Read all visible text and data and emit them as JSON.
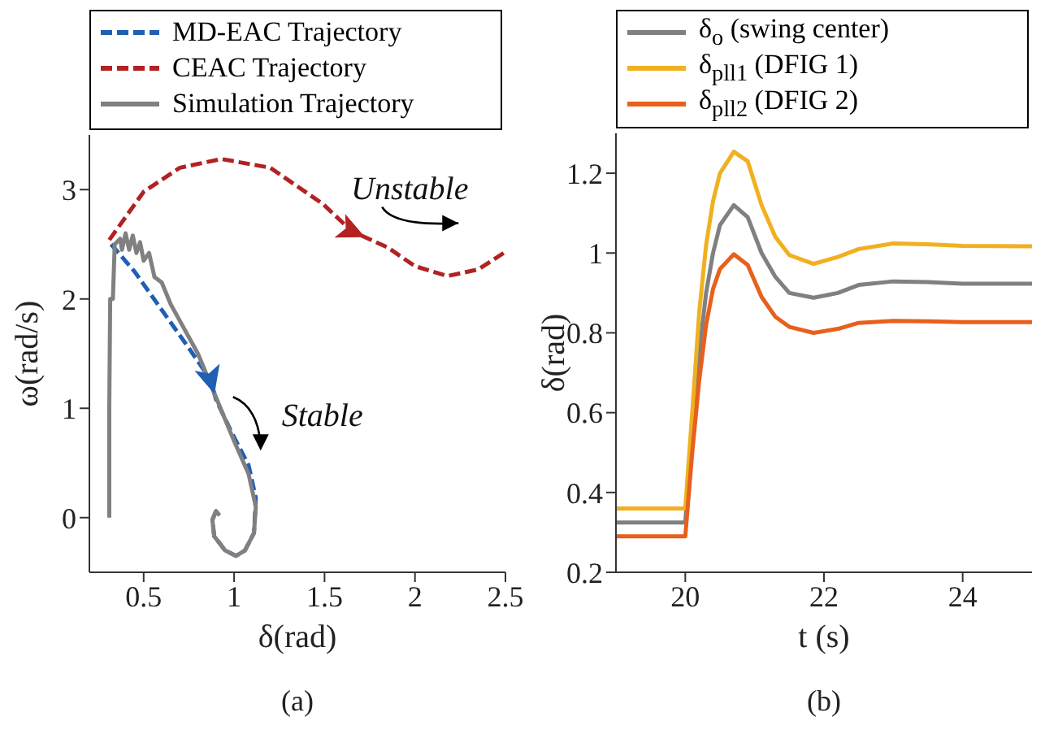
{
  "chart_data": [
    {
      "type": "line",
      "xlabel": "δ(rad)",
      "ylabel": "ω(rad/s)",
      "xlim": [
        0.2,
        2.5
      ],
      "xticks": [
        0.5,
        1,
        1.5,
        2,
        2.5
      ],
      "ylim": [
        -0.5,
        3.5
      ],
      "yticks": [
        0,
        1,
        2,
        3
      ],
      "legend": "top",
      "marker": "none",
      "series": [
        {
          "name": "MD-EAC Trajectory",
          "color": "#1f5fb4",
          "line_style": "dashed",
          "x": [
            0.32,
            0.45,
            0.6,
            0.75,
            0.87,
            0.9,
            0.98,
            1.08,
            1.12,
            1.11,
            1.06,
            1.01,
            0.95,
            0.89,
            0.88,
            0.9
          ],
          "values": [
            2.5,
            2.25,
            1.9,
            1.55,
            1.26,
            1.08,
            0.8,
            0.48,
            0.18,
            -0.14,
            -0.3,
            -0.35,
            -0.3,
            -0.17,
            -0.02,
            0.06
          ]
        },
        {
          "name": "CEAC Trajectory",
          "color": "#b22222",
          "line_style": "dashed",
          "x": [
            0.31,
            0.5,
            0.7,
            0.93,
            1.2,
            1.49,
            1.65,
            1.85,
            2.0,
            2.18,
            2.35,
            2.49
          ],
          "values": [
            2.54,
            2.98,
            3.2,
            3.28,
            3.2,
            2.87,
            2.62,
            2.47,
            2.3,
            2.21,
            2.27,
            2.42
          ]
        },
        {
          "name": "Simulation Trajectory",
          "color": "#808080",
          "line_style": "solid",
          "x": [
            0.31,
            0.31,
            0.315,
            0.33,
            0.34,
            0.37,
            0.38,
            0.4,
            0.42,
            0.44,
            0.46,
            0.48,
            0.5,
            0.53,
            0.56,
            0.6,
            0.65,
            0.7,
            0.8,
            0.9,
            1.0,
            1.08,
            1.12,
            1.11,
            1.06,
            1.01,
            0.95,
            0.89,
            0.88,
            0.9,
            0.92
          ],
          "values": [
            0,
            1.0,
            2.0,
            2.0,
            2.5,
            2.55,
            2.45,
            2.6,
            2.45,
            2.58,
            2.42,
            2.52,
            2.35,
            2.42,
            2.2,
            2.15,
            1.95,
            1.8,
            1.5,
            1.1,
            0.7,
            0.4,
            0.1,
            -0.14,
            -0.3,
            -0.35,
            -0.3,
            -0.17,
            -0.02,
            0.06,
            0.02
          ]
        }
      ],
      "annotations": [
        "Unstable",
        "Stable",
        "(a)"
      ]
    },
    {
      "type": "line",
      "xlabel": "t (s)",
      "ylabel": "δ(rad)",
      "xlim": [
        19,
        25
      ],
      "xticks": [
        20,
        22,
        24
      ],
      "ylim": [
        0.2,
        1.3
      ],
      "yticks": [
        0.2,
        0.4,
        0.6,
        0.8,
        1,
        1.2
      ],
      "legend": "top",
      "marker": "none",
      "x": [
        19,
        20,
        20.1,
        20.2,
        20.3,
        20.4,
        20.5,
        20.7,
        20.9,
        21.1,
        21.3,
        21.5,
        21.85,
        22.2,
        22.5,
        23,
        23.5,
        24,
        25
      ],
      "series": [
        {
          "name": "δ$_{o}$ (swing center)",
          "color": "#808080",
          "values": [
            0.325,
            0.325,
            0.55,
            0.75,
            0.9,
            1.0,
            1.07,
            1.12,
            1.09,
            1.0,
            0.94,
            0.9,
            0.888,
            0.9,
            0.92,
            0.929,
            0.927,
            0.923,
            0.923
          ]
        },
        {
          "name": "δ$_{pll1}$ (DFIG 1)",
          "color": "#f0b020",
          "values": [
            0.36,
            0.36,
            0.6,
            0.85,
            1.02,
            1.13,
            1.2,
            1.254,
            1.23,
            1.12,
            1.04,
            0.995,
            0.973,
            0.99,
            1.01,
            1.024,
            1.022,
            1.018,
            1.017
          ]
        },
        {
          "name": "δ$_{pll2}$ (DFIG 2)",
          "color": "#e8601c",
          "values": [
            0.29,
            0.29,
            0.5,
            0.68,
            0.82,
            0.91,
            0.96,
            0.997,
            0.97,
            0.89,
            0.84,
            0.815,
            0.8,
            0.81,
            0.825,
            0.83,
            0.829,
            0.827,
            0.827
          ]
        }
      ],
      "annotations": [
        "(b)"
      ]
    }
  ]
}
